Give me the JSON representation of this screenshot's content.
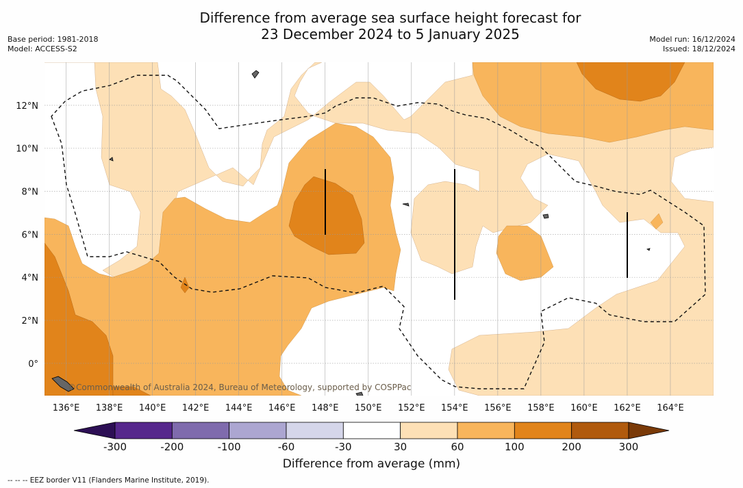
{
  "title": {
    "line1": "Difference from average sea surface height forecast for",
    "line2": "23 December 2024 to 5 January 2025"
  },
  "meta_left": [
    "Base period: 1981-2018",
    "Model: ACCESS-S2"
  ],
  "meta_right": [
    "Model run: 16/12/2024",
    "Issued: 18/12/2024"
  ],
  "copyright": "©Commonwealth of Australia 2024, Bureau of Meteorology, supported by COSPPac",
  "footnote": "--  --  -- EEZ border V11 (Flanders Marine Institute, 2019).",
  "colorbar": {
    "title": "Difference from average (mm)",
    "labels": [
      "-300",
      "-200",
      "-100",
      "-60",
      "-30",
      "30",
      "60",
      "100",
      "200",
      "300"
    ],
    "colors": [
      "#2d0f55",
      "#56278c",
      "#7f6bad",
      "#aca6d1",
      "#d5d6ea",
      "#ffffff",
      "#fde0b6",
      "#f8b55c",
      "#e1841b",
      "#b05a0d",
      "#7a3a08"
    ]
  },
  "chart_data": {
    "type": "heatmap",
    "title": "Difference from average sea surface height forecast for 23 December 2024 to 5 January 2025",
    "xlabel": "",
    "ylabel": "",
    "lon_range": [
      135,
      166
    ],
    "lat_range": [
      -1.5,
      14
    ],
    "x_ticks": [
      "136°E",
      "138°E",
      "140°E",
      "142°E",
      "144°E",
      "146°E",
      "148°E",
      "150°E",
      "152°E",
      "154°E",
      "156°E",
      "158°E",
      "160°E",
      "162°E",
      "164°E"
    ],
    "x_tick_values": [
      136,
      138,
      140,
      142,
      144,
      146,
      148,
      150,
      152,
      154,
      156,
      158,
      160,
      162,
      164
    ],
    "y_ticks": [
      "0°",
      "2°N",
      "4°N",
      "6°N",
      "8°N",
      "10°N",
      "12°N"
    ],
    "y_tick_values": [
      0,
      2,
      4,
      6,
      8,
      10,
      12
    ],
    "grid": true,
    "units": "mm",
    "levels": [
      -300,
      -200,
      -100,
      -60,
      -30,
      30,
      60,
      100,
      200,
      300
    ]
  }
}
